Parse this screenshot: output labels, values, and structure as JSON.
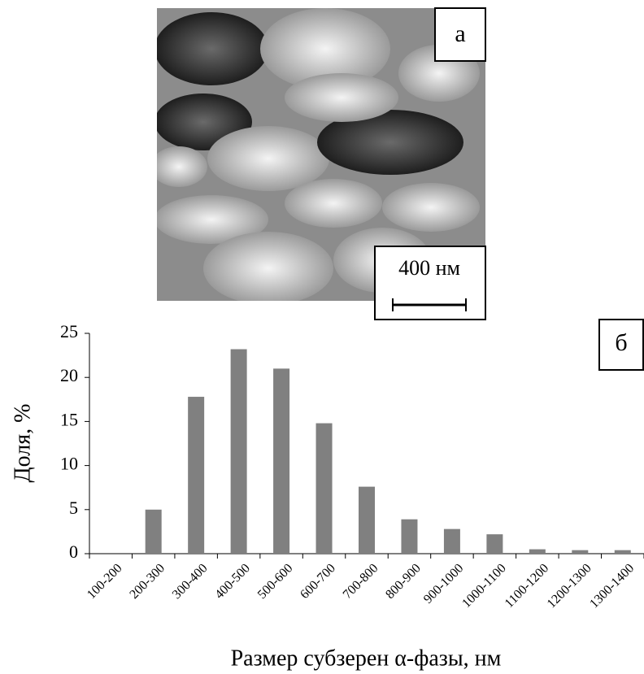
{
  "micrograph": {
    "label": "а",
    "scale_bar": "400 нм"
  },
  "chart_data": {
    "type": "bar",
    "annotation": "б",
    "x_label": "Размер субзерен α-фазы, нм",
    "y_label": "Доля, %",
    "categories": [
      "100-200",
      "200-300",
      "300-400",
      "400-500",
      "500-600",
      "600-700",
      "700-800",
      "800-900",
      "900-1000",
      "1000-1100",
      "1100-1200",
      "1200-1300",
      "1300-1400"
    ],
    "values": [
      0,
      5.0,
      17.8,
      23.2,
      21.0,
      14.8,
      7.6,
      3.9,
      2.8,
      2.2,
      0.5,
      0.4,
      0.4
    ],
    "color": "#808080",
    "ylim": [
      0,
      25
    ],
    "yticks": [
      0,
      5,
      10,
      15,
      20,
      25
    ],
    "grid": false
  }
}
